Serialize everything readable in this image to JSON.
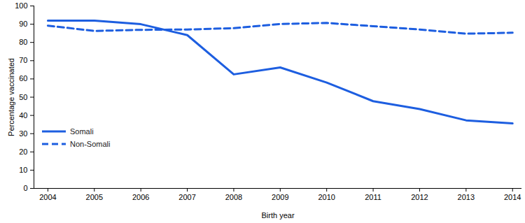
{
  "chart_data": {
    "type": "line",
    "x_label": "Birth year",
    "y_label": "Percentage vaccinated",
    "x": [
      2004,
      2005,
      2006,
      2007,
      2008,
      2009,
      2010,
      2011,
      2012,
      2013,
      2014
    ],
    "series": [
      {
        "name": "Somali",
        "color": "#1d5ee0",
        "line_style": "solid",
        "values": [
          92,
          92,
          90,
          84,
          62.5,
          66.3,
          58,
          47.8,
          43.5,
          37.3,
          35.6
        ]
      },
      {
        "name": "Non-Somali",
        "color": "#1d5ee0",
        "line_style": "dashed",
        "values": [
          89.2,
          86.3,
          86.9,
          87.1,
          87.8,
          90.1,
          90.7,
          88.9,
          87.1,
          84.8,
          85.3
        ]
      }
    ],
    "xlim": [
      2003.7,
      2014.2
    ],
    "xticks": [
      2004,
      2005,
      2006,
      2007,
      2008,
      2009,
      2010,
      2011,
      2012,
      2013,
      2014
    ],
    "ylim": [
      0,
      100
    ],
    "yticks": [
      0,
      10,
      20,
      30,
      40,
      50,
      60,
      70,
      80,
      90,
      100
    ],
    "grid": false,
    "legend": "lower left"
  }
}
